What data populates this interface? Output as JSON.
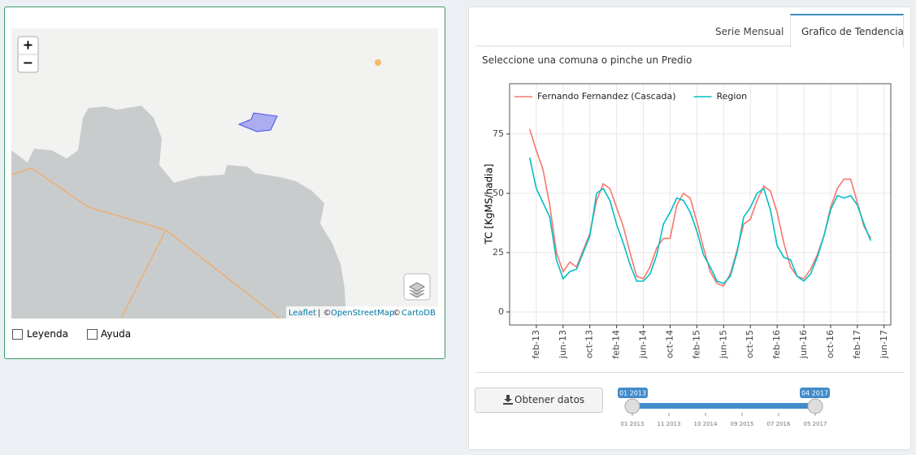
{
  "map": {
    "zoom_in": "+",
    "zoom_out": "−",
    "attribution": {
      "leaflet": "Leaflet",
      "separator": "| ©",
      "osm": "OpenStreetMap",
      "copy": "©",
      "carto": "CartoDB"
    }
  },
  "options": {
    "legend": "Leyenda",
    "help": "Ayuda"
  },
  "tabs": {
    "monthly": "Serie Mensual",
    "trend": "Grafico de Tendencia"
  },
  "prompt": "Seleccione una comuna o pinche un Predio",
  "chart_data": {
    "type": "line",
    "ylabel": "TC [KgMS/hadia]",
    "x": [
      "2013-01",
      "2013-02",
      "2013-03",
      "2013-04",
      "2013-05",
      "2013-06",
      "2013-07",
      "2013-08",
      "2013-09",
      "2013-10",
      "2013-11",
      "2013-12",
      "2014-01",
      "2014-02",
      "2014-03",
      "2014-04",
      "2014-05",
      "2014-06",
      "2014-07",
      "2014-08",
      "2014-09",
      "2014-10",
      "2014-11",
      "2014-12",
      "2015-01",
      "2015-02",
      "2015-03",
      "2015-04",
      "2015-05",
      "2015-06",
      "2015-07",
      "2015-08",
      "2015-09",
      "2015-10",
      "2015-11",
      "2015-12",
      "2016-01",
      "2016-02",
      "2016-03",
      "2016-04",
      "2016-05",
      "2016-06",
      "2016-07",
      "2016-08",
      "2016-09",
      "2016-10",
      "2016-11",
      "2016-12",
      "2017-01",
      "2017-02",
      "2017-03",
      "2017-04"
    ],
    "series": [
      {
        "name": "Fernando Fernandez (Cascada)",
        "color": "#f8766d",
        "values": [
          77,
          68,
          60,
          45,
          25,
          17,
          21,
          19,
          26,
          33,
          47,
          54,
          52,
          44,
          36,
          25,
          15,
          14,
          19,
          27,
          31,
          31,
          45,
          50,
          48,
          38,
          27,
          17,
          12,
          11,
          16,
          26,
          37,
          39,
          47,
          53,
          51,
          42,
          29,
          19,
          15,
          14,
          18,
          24,
          32,
          44,
          52,
          56,
          56,
          46,
          36,
          31
        ]
      },
      {
        "name": "Region",
        "color": "#00bfc4",
        "values": [
          65,
          52,
          46,
          40,
          22,
          14,
          17,
          18,
          25,
          32,
          50,
          52,
          47,
          37,
          29,
          20,
          13,
          13,
          16,
          24,
          37,
          42,
          48,
          47,
          42,
          34,
          24,
          19,
          13,
          12,
          15,
          25,
          40,
          44,
          50,
          52,
          43,
          28,
          23,
          22,
          15,
          13,
          16,
          23,
          32,
          43,
          49,
          48,
          49,
          45,
          37,
          30
        ]
      }
    ],
    "xlim": [
      "2012-10",
      "2017-07"
    ],
    "xticks": [
      {
        "value": "2013-02",
        "label": "feb-13"
      },
      {
        "value": "2013-06",
        "label": "jun-13"
      },
      {
        "value": "2013-10",
        "label": "oct-13"
      },
      {
        "value": "2014-02",
        "label": "feb-14"
      },
      {
        "value": "2014-06",
        "label": "jun-14"
      },
      {
        "value": "2014-10",
        "label": "oct-14"
      },
      {
        "value": "2015-02",
        "label": "feb-15"
      },
      {
        "value": "2015-06",
        "label": "jun-15"
      },
      {
        "value": "2015-10",
        "label": "oct-15"
      },
      {
        "value": "2016-02",
        "label": "feb-16"
      },
      {
        "value": "2016-06",
        "label": "jun-16"
      },
      {
        "value": "2016-10",
        "label": "oct-16"
      },
      {
        "value": "2017-02",
        "label": "feb-17"
      },
      {
        "value": "2017-06",
        "label": "jun-17"
      }
    ],
    "ylim": [
      -5.5,
      96.2
    ],
    "yticks": [
      0,
      25,
      50,
      75
    ],
    "grid": true,
    "legend": "top-left"
  },
  "download": "Obtener datos",
  "slider": {
    "from": "01 2013",
    "to": "04 2017",
    "ticks": [
      "01 2013",
      "11 2013",
      "10 2014",
      "09 2015",
      "07 2016",
      "05 2017"
    ]
  }
}
